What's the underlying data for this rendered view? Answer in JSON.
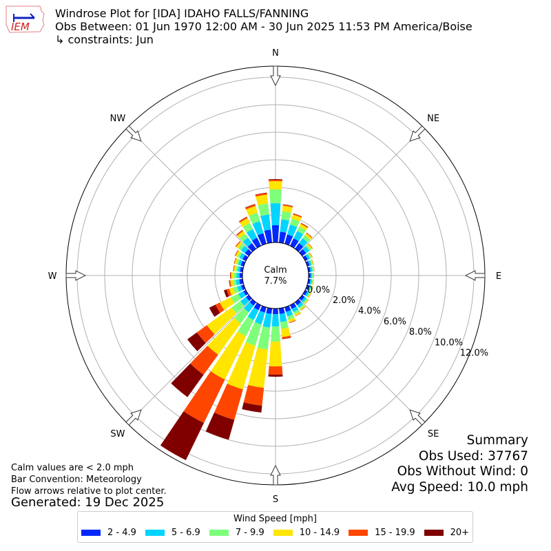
{
  "header": {
    "title": "Windrose Plot for [IDA] IDAHO FALLS/FANNING",
    "obs_between": "Obs Between: 01 Jun 1970 12:00 AM - 30 Jun 2025 11:53 PM America/Boise",
    "constraints": "↳ constraints: Jun",
    "logo_text": "IEM"
  },
  "notes": {
    "calm": "Calm values are < 2.0 mph",
    "convention": "Bar Convention: Meteorology",
    "flow": "Flow arrows relative to plot center.",
    "generated": "Generated: 19 Dec 2025"
  },
  "summary": {
    "title": "Summary",
    "obs_used": "Obs Used: 37767",
    "obs_without_wind": "Obs Without Wind: 0",
    "avg_speed": "Avg Speed: 10.0 mph"
  },
  "chart_data": {
    "type": "windrose",
    "calm_label": "Calm",
    "calm_value": "7.7%",
    "compass_labels": [
      "N",
      "NE",
      "E",
      "SE",
      "S",
      "SW",
      "W",
      "NW"
    ],
    "radial_ticks": [
      "0.0%",
      "2.0%",
      "4.0%",
      "6.0%",
      "8.0%",
      "10.0%",
      "12.0%"
    ],
    "radial_max_pct": 12.8,
    "legend_title": "Wind Speed [mph]",
    "bins": [
      {
        "label": "2 - 4.9",
        "color": "#0028ff"
      },
      {
        "label": "5 - 6.9",
        "color": "#00d4ff"
      },
      {
        "label": "7 - 9.9",
        "color": "#7dff7a"
      },
      {
        "label": "10 - 14.9",
        "color": "#ffe500"
      },
      {
        "label": "15 - 19.9",
        "color": "#ff4600"
      },
      {
        "label": "20+",
        "color": "#800000"
      }
    ],
    "directions_deg": [
      0,
      10,
      20,
      30,
      40,
      50,
      60,
      70,
      80,
      90,
      100,
      110,
      120,
      130,
      140,
      150,
      160,
      170,
      180,
      190,
      200,
      210,
      220,
      230,
      240,
      250,
      260,
      270,
      280,
      290,
      300,
      310,
      320,
      330,
      340,
      350
    ],
    "values_pct": [
      [
        1.25,
        1.6,
        1.0,
        0.6,
        0.1,
        0.05
      ],
      [
        0.8,
        0.9,
        0.6,
        0.4,
        0.08,
        0.02
      ],
      [
        0.7,
        0.75,
        0.45,
        0.3,
        0.08,
        0.02
      ],
      [
        0.6,
        0.6,
        0.35,
        0.22,
        0.06,
        0.02
      ],
      [
        0.5,
        0.45,
        0.27,
        0.17,
        0.05,
        0.01
      ],
      [
        0.35,
        0.3,
        0.16,
        0.1,
        0.03,
        0.01
      ],
      [
        0.22,
        0.18,
        0.1,
        0.07,
        0.02,
        0.01
      ],
      [
        0.18,
        0.15,
        0.09,
        0.06,
        0.015,
        0.005
      ],
      [
        0.16,
        0.14,
        0.08,
        0.05,
        0.015,
        0.005
      ],
      [
        0.15,
        0.12,
        0.07,
        0.045,
        0.01,
        0.005
      ],
      [
        0.15,
        0.12,
        0.07,
        0.045,
        0.01,
        0.005
      ],
      [
        0.16,
        0.14,
        0.08,
        0.05,
        0.015,
        0.005
      ],
      [
        0.18,
        0.15,
        0.09,
        0.06,
        0.015,
        0.005
      ],
      [
        0.22,
        0.18,
        0.11,
        0.07,
        0.015,
        0.005
      ],
      [
        0.27,
        0.22,
        0.14,
        0.09,
        0.025,
        0.005
      ],
      [
        0.3,
        0.27,
        0.18,
        0.12,
        0.025,
        0.005
      ],
      [
        0.35,
        0.35,
        0.25,
        0.2,
        0.04,
        0.01
      ],
      [
        0.4,
        0.6,
        0.5,
        0.6,
        0.12,
        0.03
      ],
      [
        0.4,
        0.9,
        1.1,
        1.8,
        0.6,
        0.15
      ],
      [
        0.4,
        1.0,
        1.6,
        2.8,
        1.3,
        0.5
      ],
      [
        0.4,
        0.9,
        1.6,
        3.3,
        2.3,
        1.5
      ],
      [
        0.4,
        0.8,
        1.3,
        3.5,
        3.5,
        3.0
      ],
      [
        0.3,
        0.6,
        1.0,
        2.8,
        1.8,
        2.0
      ],
      [
        0.25,
        0.5,
        0.8,
        2.2,
        0.9,
        0.85
      ],
      [
        0.2,
        0.4,
        0.6,
        0.9,
        0.35,
        0.5
      ],
      [
        0.2,
        0.3,
        0.3,
        0.3,
        0.2,
        0.2
      ],
      [
        0.25,
        0.25,
        0.2,
        0.2,
        0.07,
        0.03
      ],
      [
        0.22,
        0.22,
        0.18,
        0.2,
        0.06,
        0.02
      ],
      [
        0.2,
        0.18,
        0.13,
        0.14,
        0.04,
        0.01
      ],
      [
        0.22,
        0.2,
        0.14,
        0.14,
        0.04,
        0.01
      ],
      [
        0.27,
        0.25,
        0.17,
        0.15,
        0.05,
        0.01
      ],
      [
        0.35,
        0.35,
        0.25,
        0.18,
        0.06,
        0.01
      ],
      [
        0.5,
        0.5,
        0.35,
        0.25,
        0.08,
        0.02
      ],
      [
        0.65,
        0.7,
        0.5,
        0.38,
        0.1,
        0.02
      ],
      [
        0.8,
        0.9,
        0.65,
        0.5,
        0.12,
        0.03
      ],
      [
        0.95,
        1.1,
        0.8,
        0.65,
        0.12,
        0.03
      ]
    ]
  }
}
